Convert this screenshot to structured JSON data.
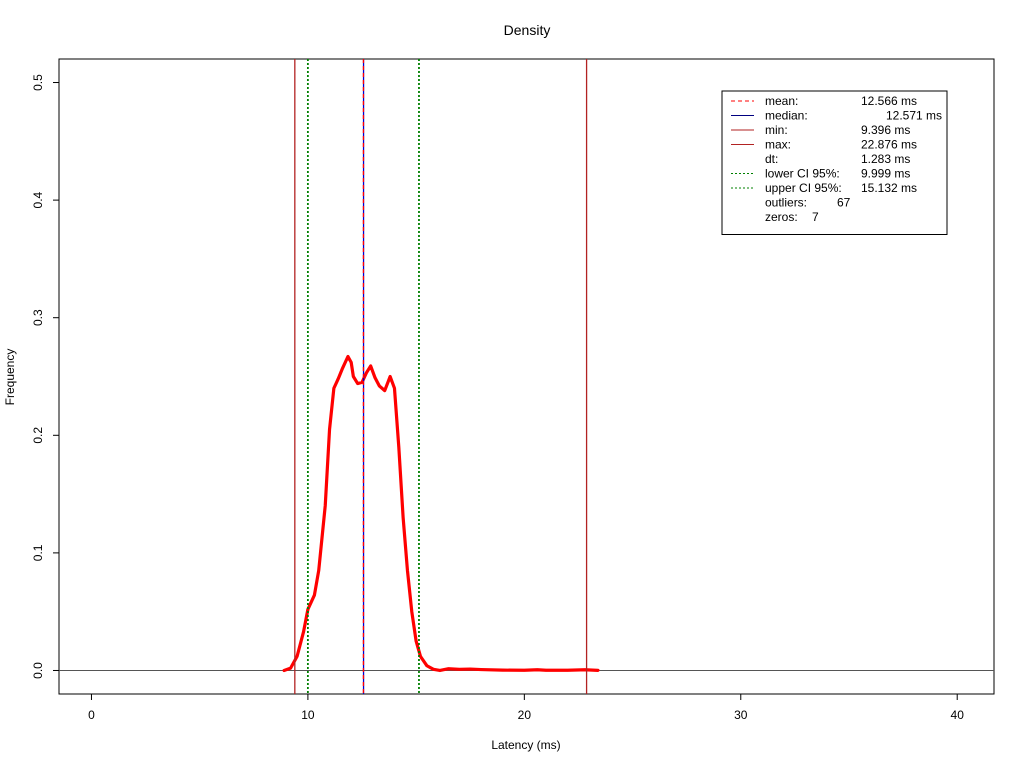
{
  "chart_data": {
    "type": "line",
    "title": "Density",
    "xlabel": "Latency (ms)",
    "ylabel": "Frequency",
    "xlim": [
      -1.5,
      41.7
    ],
    "ylim": [
      -0.02,
      0.52
    ],
    "x_ticks": [
      0,
      10,
      20,
      30,
      40
    ],
    "x_tick_labels": [
      "0",
      "10",
      "20",
      "30",
      "40"
    ],
    "y_ticks": [
      0.0,
      0.1,
      0.2,
      0.3,
      0.4,
      0.5
    ],
    "y_tick_labels": [
      "0.0",
      "0.1",
      "0.2",
      "0.3",
      "0.4",
      "0.5"
    ],
    "grid": false,
    "legend_position": "top-right",
    "baseline": 0,
    "series": [
      {
        "color": "#ff0000",
        "x": [
          8.9,
          9.2,
          9.5,
          9.8,
          10.0,
          10.3,
          10.5,
          10.8,
          11.0,
          11.2,
          11.4,
          11.6,
          11.85,
          12.0,
          12.1,
          12.3,
          12.5,
          12.7,
          12.9,
          13.1,
          13.3,
          13.55,
          13.8,
          14.0,
          14.2,
          14.4,
          14.6,
          14.8,
          15.0,
          15.2,
          15.5,
          15.8,
          16.1,
          16.5,
          17.0,
          17.5,
          18.0,
          19.0,
          20.0,
          20.6,
          21.0,
          22.0,
          22.8,
          23.4
        ],
        "y": [
          0.0,
          0.002,
          0.012,
          0.033,
          0.052,
          0.064,
          0.085,
          0.14,
          0.205,
          0.24,
          0.248,
          0.257,
          0.267,
          0.262,
          0.25,
          0.244,
          0.245,
          0.253,
          0.259,
          0.249,
          0.242,
          0.238,
          0.25,
          0.24,
          0.19,
          0.13,
          0.085,
          0.05,
          0.025,
          0.012,
          0.004,
          0.001,
          0.0,
          0.0015,
          0.001,
          0.0012,
          0.0008,
          0.0003,
          0.0002,
          0.0006,
          0.0002,
          0.0002,
          0.0006,
          0.0001
        ]
      }
    ],
    "vertical_lines": [
      {
        "label": "mean:",
        "value": 12.566,
        "color": "#ff0000",
        "dash": "dashed"
      },
      {
        "label": "median:",
        "value": 12.571,
        "color": "#0000cd",
        "dash": "solid"
      },
      {
        "label": "min:",
        "value": 9.396,
        "color": "#b22222",
        "dash": "solid"
      },
      {
        "label": "max:",
        "value": 22.876,
        "color": "#b22222",
        "dash": "solid"
      },
      {
        "label": "lower CI 95%:",
        "value": 9.999,
        "color": "#008000",
        "dash": "dotted"
      },
      {
        "label": "upper CI 95%:",
        "value": 15.132,
        "color": "#008000",
        "dash": "dotted"
      }
    ],
    "legend": [
      {
        "label": "mean:",
        "value": "12.566 ms",
        "color": "#ff0000",
        "dash": "dashed",
        "value_indent": 0
      },
      {
        "label": "median:",
        "value": "12.571 ms",
        "color": "#000080",
        "dash": "solid",
        "value_indent": 1
      },
      {
        "label": "min:",
        "value": "9.396 ms",
        "color": "#b22222",
        "dash": "solid",
        "value_indent": 0
      },
      {
        "label": "max:",
        "value": "22.876 ms",
        "color": "#b22222",
        "dash": "solid",
        "value_indent": 0
      },
      {
        "label": "dt:",
        "value": "1.283 ms",
        "color": "",
        "dash": "none",
        "value_indent": 0
      },
      {
        "label": "lower CI 95%:",
        "value": "9.999 ms",
        "color": "#008000",
        "dash": "dotted",
        "value_indent": 0
      },
      {
        "label": "upper CI 95%:",
        "value": "15.132 ms",
        "color": "#008000",
        "dash": "dotted",
        "value_indent": 0
      },
      {
        "label": "outliers:",
        "value": "67",
        "color": "",
        "dash": "none",
        "value_indent": 2
      },
      {
        "label": "zeros:",
        "value": "7",
        "color": "",
        "dash": "none",
        "value_indent": 3
      }
    ]
  }
}
